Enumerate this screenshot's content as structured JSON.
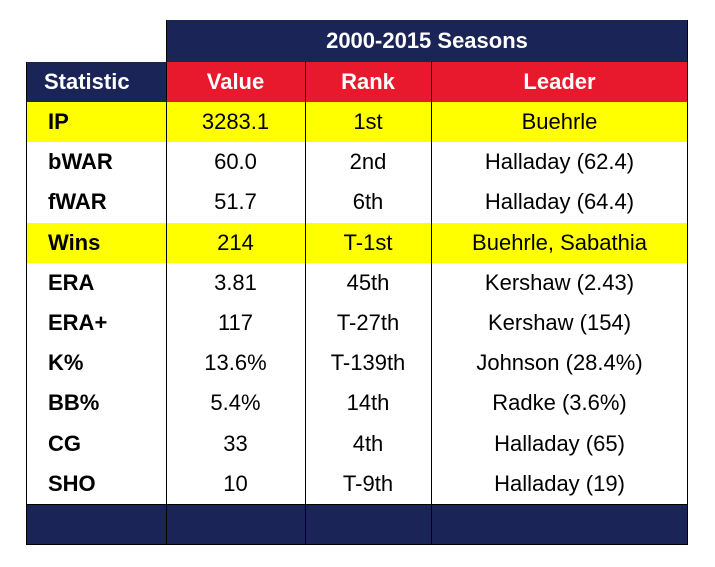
{
  "table": {
    "group_header": "2000-2015 Seasons",
    "columns": [
      "Statistic",
      "Value",
      "Rank",
      "Leader"
    ],
    "highlight_color": "#ffff00",
    "header_color": "#e8192c",
    "navy_color": "#1b2456",
    "rows": [
      {
        "stat": "IP",
        "value": "3283.1",
        "rank": "1st",
        "leader": "Buehrle",
        "highlight": true
      },
      {
        "stat": "bWAR",
        "value": "60.0",
        "rank": "2nd",
        "leader": "Halladay (62.4)",
        "highlight": false
      },
      {
        "stat": "fWAR",
        "value": "51.7",
        "rank": "6th",
        "leader": "Halladay (64.4)",
        "highlight": false
      },
      {
        "stat": "Wins",
        "value": "214",
        "rank": "T-1st",
        "leader": "Buehrle, Sabathia",
        "highlight": true
      },
      {
        "stat": "ERA",
        "value": "3.81",
        "rank": "45th",
        "leader": "Kershaw (2.43)",
        "highlight": false
      },
      {
        "stat": "ERA+",
        "value": "117",
        "rank": "T-27th",
        "leader": "Kershaw (154)",
        "highlight": false
      },
      {
        "stat": "K%",
        "value": "13.6%",
        "rank": "T-139th",
        "leader": "Johnson (28.4%)",
        "highlight": false
      },
      {
        "stat": "BB%",
        "value": "5.4%",
        "rank": "14th",
        "leader": "Radke (3.6%)",
        "highlight": false
      },
      {
        "stat": "CG",
        "value": "33",
        "rank": "4th",
        "leader": "Halladay (65)",
        "highlight": false
      },
      {
        "stat": "SHO",
        "value": "10",
        "rank": "T-9th",
        "leader": "Halladay (19)",
        "highlight": false
      }
    ]
  }
}
